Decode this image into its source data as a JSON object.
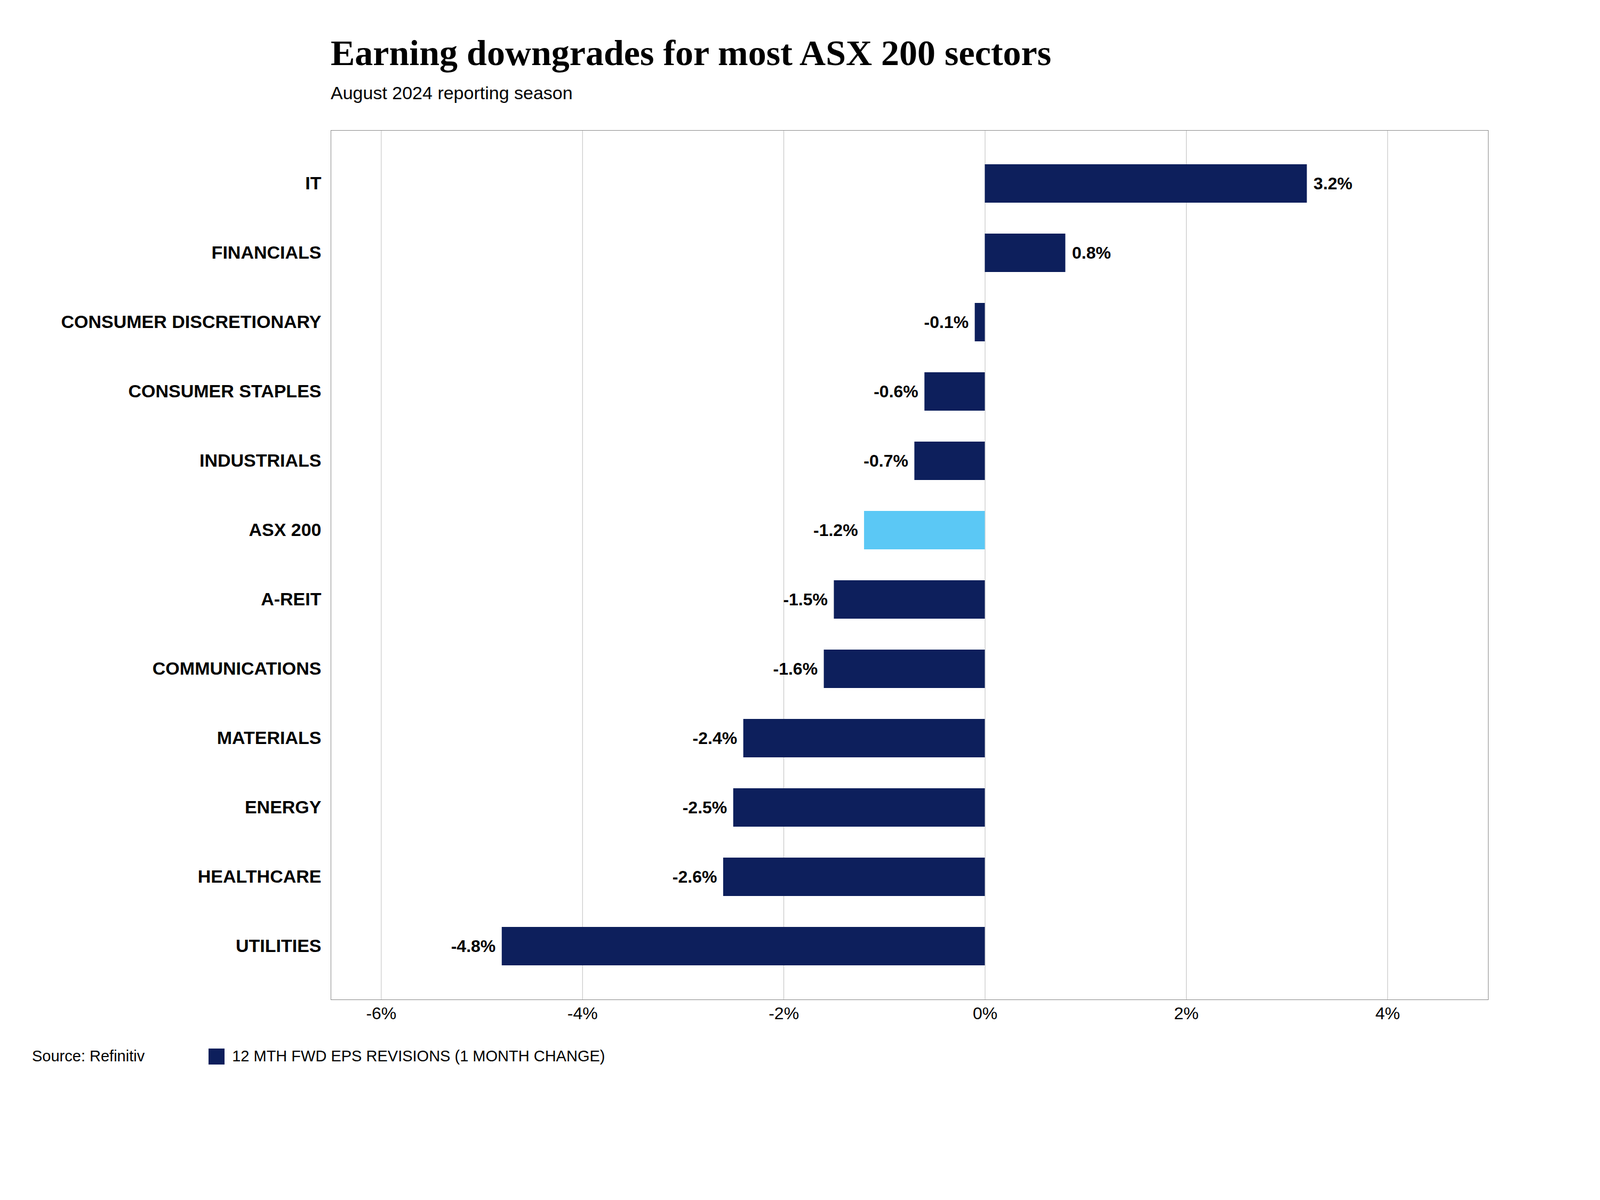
{
  "chart_data": {
    "type": "bar",
    "orientation": "horizontal",
    "title": "Earning downgrades for most ASX 200 sectors",
    "subtitle": "August 2024 reporting season",
    "annotations": [
      "Source: Refinitiv"
    ],
    "categories": [
      "IT",
      "FINANCIALS",
      "CONSUMER DISCRETIONARY",
      "CONSUMER STAPLES",
      "INDUSTRIALS",
      "ASX 200",
      "A-REIT",
      "COMMUNICATIONS",
      "MATERIALS",
      "ENERGY",
      "HEALTHCARE",
      "UTILITIES"
    ],
    "series": [
      {
        "name": "12 MTH FWD EPS REVISIONS (1 MONTH CHANGE)",
        "color": "#0d1f5c",
        "colors": [
          "#0d1f5c",
          "#0d1f5c",
          "#0d1f5c",
          "#0d1f5c",
          "#0d1f5c",
          "#5bc8f5",
          "#0d1f5c",
          "#0d1f5c",
          "#0d1f5c",
          "#0d1f5c",
          "#0d1f5c",
          "#0d1f5c"
        ],
        "values": [
          3.2,
          0.8,
          -0.1,
          -0.6,
          -0.7,
          -1.2,
          -1.5,
          -1.6,
          -2.4,
          -2.5,
          -2.6,
          -4.8
        ],
        "value_labels": [
          "3.2%",
          "0.8%",
          "-0.1%",
          "-0.6%",
          "-0.7%",
          "-1.2%",
          "-1.5%",
          "-1.6%",
          "-2.4%",
          "-2.5%",
          "-2.6%",
          "-4.8%"
        ]
      }
    ],
    "xlim": [
      -6.5,
      5.0
    ],
    "xticks": [
      {
        "value": -6,
        "label": "-6%"
      },
      {
        "value": -4,
        "label": "-4%"
      },
      {
        "value": -2,
        "label": "-2%"
      },
      {
        "value": 0,
        "label": "0%"
      },
      {
        "value": 2,
        "label": "2%"
      },
      {
        "value": 4,
        "label": "4%"
      }
    ],
    "grid": true,
    "legend": "lower left",
    "data_labels": true
  }
}
